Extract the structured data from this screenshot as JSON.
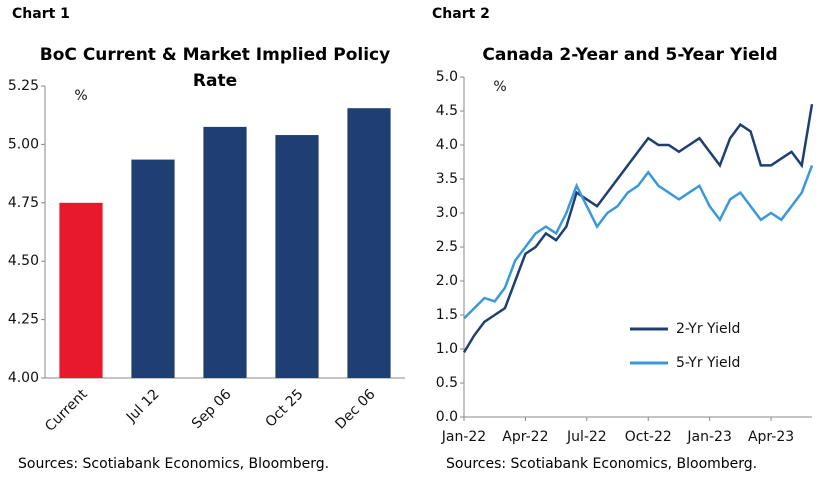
{
  "chart_data": [
    {
      "type": "bar",
      "label": "Chart 1",
      "title": "BoC Current & Market Implied Policy Rate",
      "y_label": "%",
      "categories": [
        "Current",
        "Jul 12",
        "Sep 06",
        "Oct 25",
        "Dec 06"
      ],
      "values": [
        4.75,
        4.935,
        5.075,
        5.04,
        5.155
      ],
      "colors": [
        "#e8192c",
        "#1f3f73",
        "#1f3f73",
        "#1f3f73",
        "#1f3f73"
      ],
      "ylim": [
        4.0,
        5.25
      ],
      "yticks": [
        {
          "value": 4,
          "label": "4.00"
        },
        {
          "value": 4.25,
          "label": "4.25"
        },
        {
          "value": 4.5,
          "label": "4.50"
        },
        {
          "value": 4.75,
          "label": "4.75"
        },
        {
          "value": 5,
          "label": "5.00"
        },
        {
          "value": 5.25,
          "label": "5.25"
        }
      ],
      "source": "Sources: Scotiabank Economics, Bloomberg."
    },
    {
      "type": "line",
      "label": "Chart 2",
      "title": "Canada 2-Year and 5-Year Yield",
      "y_label": "%",
      "x": [
        0,
        0.5,
        1,
        1.5,
        2,
        2.5,
        3,
        3.5,
        4,
        4.5,
        5,
        5.5,
        6,
        6.5,
        7,
        7.5,
        8,
        8.5,
        9,
        9.5,
        10,
        10.5,
        11,
        11.5,
        12,
        12.5,
        13,
        13.5,
        14,
        14.5,
        15,
        15.5,
        16,
        16.5,
        17
      ],
      "series": [
        {
          "name": "2-Yr Yield",
          "color": "#1f3f73",
          "values": [
            0.95,
            1.2,
            1.4,
            1.5,
            1.6,
            2.0,
            2.4,
            2.5,
            2.7,
            2.6,
            2.8,
            3.3,
            3.2,
            3.1,
            3.3,
            3.5,
            3.7,
            3.9,
            4.1,
            4.0,
            4.0,
            3.9,
            4.0,
            4.1,
            3.9,
            3.7,
            4.1,
            4.3,
            4.2,
            3.7,
            3.7,
            3.8,
            3.9,
            3.7,
            4.6
          ]
        },
        {
          "name": "5-Yr Yield",
          "color": "#3a9ad9",
          "values": [
            1.45,
            1.6,
            1.75,
            1.7,
            1.9,
            2.3,
            2.5,
            2.7,
            2.8,
            2.7,
            3.0,
            3.4,
            3.1,
            2.8,
            3.0,
            3.1,
            3.3,
            3.4,
            3.6,
            3.4,
            3.3,
            3.2,
            3.3,
            3.4,
            3.1,
            2.9,
            3.2,
            3.3,
            3.1,
            2.9,
            3.0,
            2.9,
            3.1,
            3.3,
            3.7
          ]
        }
      ],
      "xlim": [
        0,
        17
      ],
      "xticks": [
        {
          "value": 0,
          "label": "Jan-22"
        },
        {
          "value": 3,
          "label": "Apr-22"
        },
        {
          "value": 6,
          "label": "Jul-22"
        },
        {
          "value": 9,
          "label": "Oct-22"
        },
        {
          "value": 12,
          "label": "Jan-23"
        },
        {
          "value": 15,
          "label": "Apr-23"
        }
      ],
      "ylim": [
        0,
        5
      ],
      "yticks": [
        {
          "value": 0,
          "label": "0.0"
        },
        {
          "value": 0.5,
          "label": "0.5"
        },
        {
          "value": 1,
          "label": "1.0"
        },
        {
          "value": 1.5,
          "label": "1.5"
        },
        {
          "value": 2,
          "label": "2.0"
        },
        {
          "value": 2.5,
          "label": "2.5"
        },
        {
          "value": 3,
          "label": "3.0"
        },
        {
          "value": 3.5,
          "label": "3.5"
        },
        {
          "value": 4,
          "label": "4.0"
        },
        {
          "value": 4.5,
          "label": "4.5"
        },
        {
          "value": 5,
          "label": "5.0"
        }
      ],
      "source": "Sources: Scotiabank Economics, Bloomberg."
    }
  ]
}
